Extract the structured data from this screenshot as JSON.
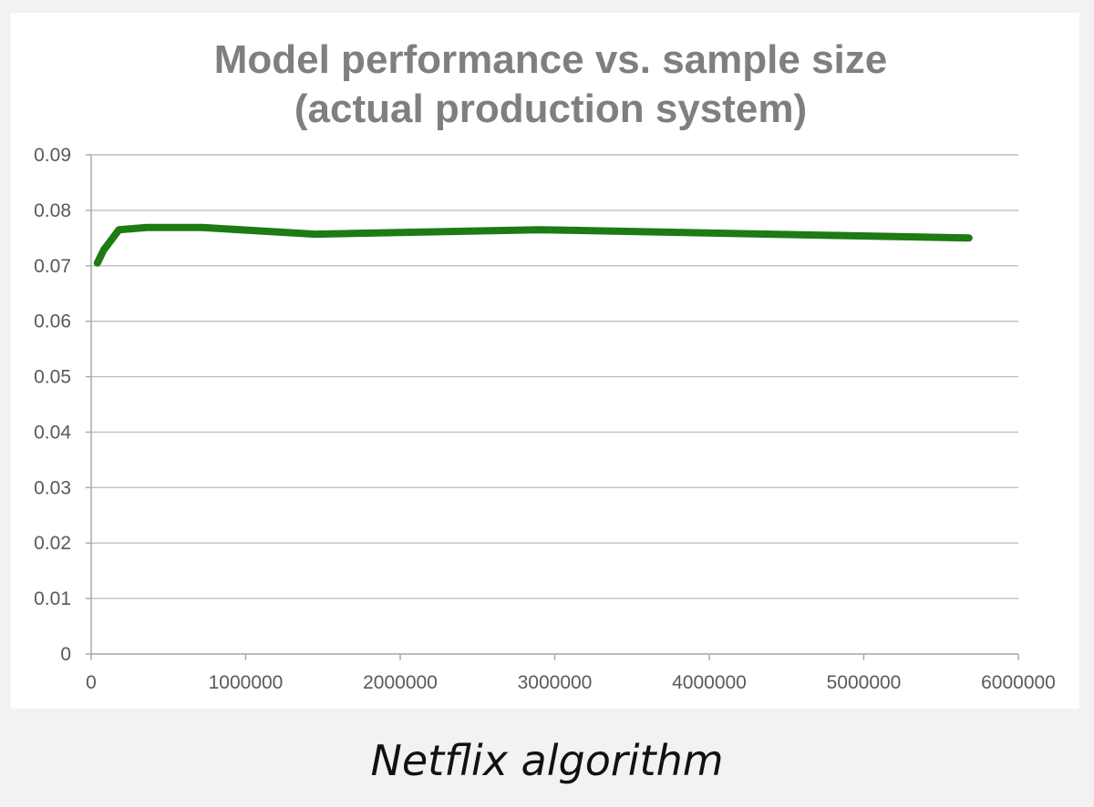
{
  "chart_data": {
    "type": "line",
    "title_lines": [
      "Model performance vs. sample size",
      "(actual production system)"
    ],
    "xlabel": "",
    "ylabel": "",
    "xlim": [
      0,
      6000000
    ],
    "ylim": [
      0,
      0.09
    ],
    "x_ticks": [
      0,
      1000000,
      2000000,
      3000000,
      4000000,
      5000000,
      6000000
    ],
    "x_tick_labels": [
      "0",
      "1000000",
      "2000000",
      "3000000",
      "4000000",
      "5000000",
      "6000000"
    ],
    "y_ticks": [
      0,
      0.01,
      0.02,
      0.03,
      0.04,
      0.05,
      0.06,
      0.07,
      0.08,
      0.09
    ],
    "y_tick_labels": [
      "0",
      "0.01",
      "0.02",
      "0.03",
      "0.04",
      "0.05",
      "0.06",
      "0.07",
      "0.08",
      "0.09"
    ],
    "grid": true,
    "legend": "none",
    "series": [
      {
        "name": "Model performance",
        "color": "#1e7a12",
        "x": [
          40000,
          80000,
          180000,
          360000,
          720000,
          1450000,
          2900000,
          5680000
        ],
        "y": [
          0.0705,
          0.0728,
          0.0765,
          0.0769,
          0.0769,
          0.0757,
          0.0765,
          0.075
        ]
      }
    ]
  },
  "caption": "Netflix algorithm"
}
